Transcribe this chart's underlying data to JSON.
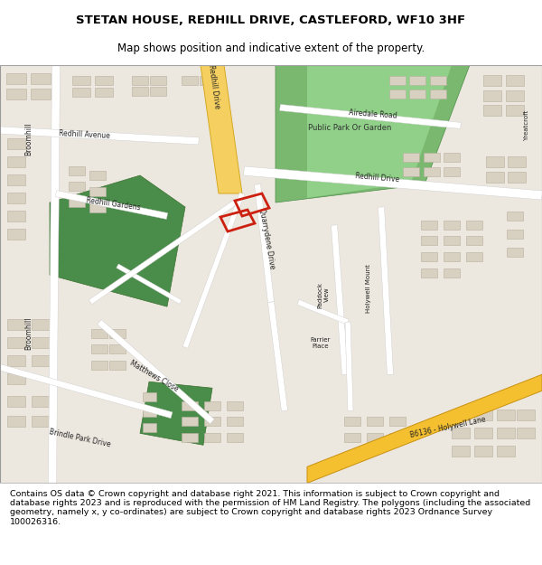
{
  "title_line1": "STETAN HOUSE, REDHILL DRIVE, CASTLEFORD, WF10 3HF",
  "title_line2": "Map shows position and indicative extent of the property.",
  "footer_text": "Contains OS data © Crown copyright and database right 2021. This information is subject to Crown copyright and database rights 2023 and is reproduced with the permission of HM Land Registry. The polygons (including the associated geometry, namely x, y co-ordinates) are subject to Crown copyright and database rights 2023 Ordnance Survey 100026316.",
  "map_bg": "#ede8df",
  "road_color": "#ffffff",
  "road_yellow": "#f5d060",
  "road_yellow_border": "#d4a820",
  "park_green": "#7ab870",
  "dark_green": "#4a8c4a",
  "building_fill": "#d8d0c0",
  "building_edge": "#b8b0a0",
  "highlight_red": "#cc2010",
  "title_fontsize": 9.5,
  "subtitle_fontsize": 8.5,
  "footer_fontsize": 6.8
}
